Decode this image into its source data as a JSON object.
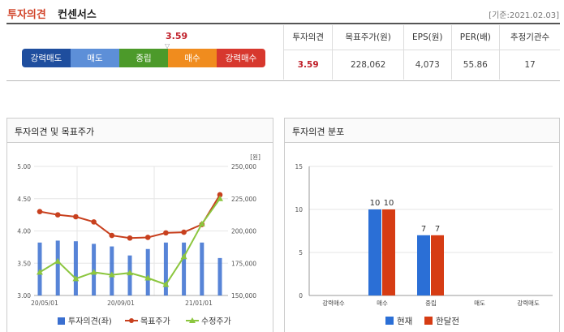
{
  "header": {
    "title_main": "투자의견",
    "title_sub": "컨센서스",
    "base_date": "[기준:2021.02.03]"
  },
  "rating_bar": {
    "segments": [
      "강력매도",
      "매도",
      "중립",
      "매수",
      "강력매수"
    ],
    "current_value": "3.59"
  },
  "opinion_table": {
    "headers": [
      "투자의견",
      "목표주가(원)",
      "EPS(원)",
      "PER(배)",
      "추정기관수"
    ],
    "row": [
      "3.59",
      "228,062",
      "4,073",
      "55.86",
      "17"
    ]
  },
  "panels": {
    "left_title": "투자의견 및 목표주가",
    "right_title": "투자의견 분포"
  },
  "colors": {
    "opinion_bar": "#3a6fd0",
    "target_price": "#c8401e",
    "adj_price": "#8cc63f",
    "current": "#2b6fd6",
    "month_ago": "#d63c14"
  },
  "chart_data": [
    {
      "type": "bar+line",
      "unit_label": "[원]",
      "x_ticks": [
        "20/05/01",
        "20/09/01",
        "21/01/01"
      ],
      "y_left": {
        "ticks": [
          "5.00",
          "4.50",
          "4.00",
          "3.50",
          "3.00"
        ],
        "range": [
          3.0,
          5.0
        ]
      },
      "y_right": {
        "ticks": [
          "250,000",
          "225,000",
          "200,000",
          "175,000",
          "150,000"
        ],
        "range": [
          150000,
          250000
        ]
      },
      "series": [
        {
          "name": "투자의견(좌)",
          "kind": "bar",
          "axis": "left",
          "values": [
            3.82,
            3.85,
            3.84,
            3.8,
            3.76,
            3.62,
            3.72,
            3.82,
            3.82,
            3.82,
            3.58
          ]
        },
        {
          "name": "목표주가",
          "kind": "line",
          "axis": "right",
          "values": [
            215000,
            212500,
            211000,
            207000,
            196500,
            194500,
            195000,
            198500,
            199000,
            205000,
            228000
          ]
        },
        {
          "name": "수정주가",
          "kind": "line",
          "axis": "right",
          "values": [
            168000,
            176500,
            163000,
            168000,
            166000,
            167500,
            163500,
            158500,
            180000,
            205500,
            225000
          ]
        }
      ]
    },
    {
      "type": "bar",
      "categories": [
        "강력매수",
        "매수",
        "중립",
        "매도",
        "강력매도"
      ],
      "y_ticks": [
        "15",
        "10",
        "5",
        "0"
      ],
      "ylim": [
        0,
        15
      ],
      "series": [
        {
          "name": "현재",
          "values": [
            0,
            10,
            7,
            0,
            0
          ]
        },
        {
          "name": "한달전",
          "values": [
            0,
            10,
            7,
            0,
            0
          ]
        }
      ]
    }
  ]
}
